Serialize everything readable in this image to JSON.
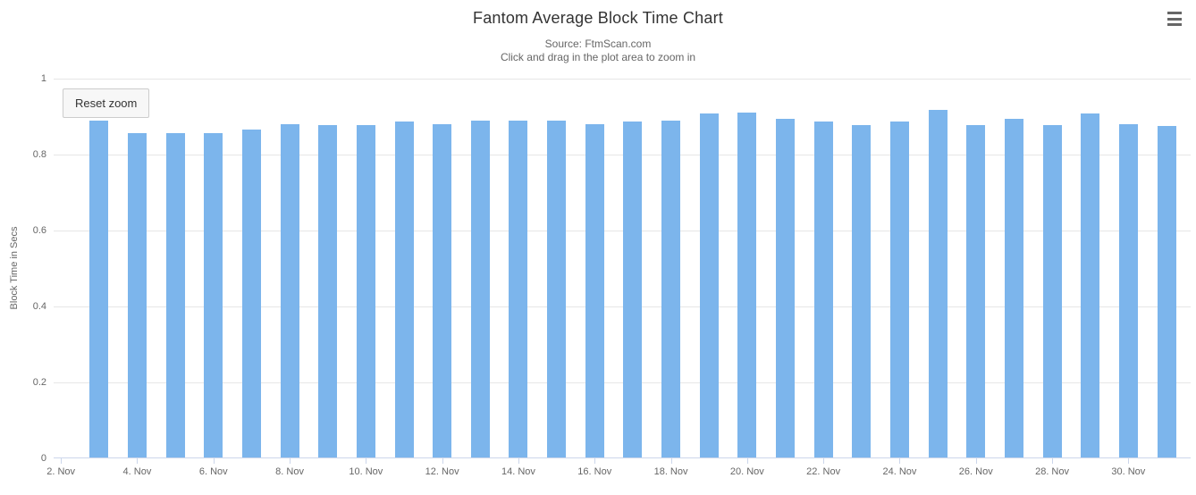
{
  "toolbar": {
    "reset_zoom_label": "Reset zoom",
    "menu_icon": "hamburger-menu-icon"
  },
  "colors": {
    "title": "#333333",
    "subtitle": "#666666",
    "axis_label": "#666666",
    "grid": "#e6e6e6",
    "axis_line": "#ccd6eb",
    "bar": "#7cb5ec",
    "button_bg": "#f7f7f7",
    "button_border": "#cccccc",
    "menu_icon": "#666666"
  },
  "chart_data": {
    "type": "bar",
    "title": "Fantom Average Block Time Chart",
    "subtitle": "Source: FtmScan.com",
    "zoom_hint": "Click and drag in the plot area to zoom in",
    "xlabel": "",
    "ylabel": "Block Time in Secs",
    "ylim": [
      0,
      1
    ],
    "grid": true,
    "legend": false,
    "categories": [
      "3. Nov",
      "4. Nov",
      "5. Nov",
      "6. Nov",
      "7. Nov",
      "8. Nov",
      "9. Nov",
      "10. Nov",
      "11. Nov",
      "12. Nov",
      "13. Nov",
      "14. Nov",
      "15. Nov",
      "16. Nov",
      "17. Nov",
      "18. Nov",
      "19. Nov",
      "20. Nov",
      "21. Nov",
      "22. Nov",
      "23. Nov",
      "24. Nov",
      "25. Nov",
      "26. Nov",
      "27. Nov",
      "28. Nov",
      "29. Nov",
      "30. Nov",
      "1. Dec"
    ],
    "values": [
      0.889,
      0.857,
      0.857,
      0.856,
      0.867,
      0.879,
      0.878,
      0.878,
      0.888,
      0.879,
      0.889,
      0.889,
      0.889,
      0.879,
      0.888,
      0.889,
      0.909,
      0.91,
      0.895,
      0.888,
      0.877,
      0.888,
      0.918,
      0.877,
      0.895,
      0.877,
      0.908,
      0.879,
      0.875
    ],
    "y_ticks": [
      {
        "value": 0,
        "label": "0"
      },
      {
        "value": 0.2,
        "label": "0.2"
      },
      {
        "value": 0.4,
        "label": "0.4"
      },
      {
        "value": 0.6,
        "label": "0.6"
      },
      {
        "value": 0.8,
        "label": "0.8"
      },
      {
        "value": 1,
        "label": "1"
      }
    ],
    "x_ticks": [
      {
        "label": "2. Nov",
        "pos": -1
      },
      {
        "label": "4. Nov",
        "pos": 1
      },
      {
        "label": "6. Nov",
        "pos": 3
      },
      {
        "label": "8. Nov",
        "pos": 5
      },
      {
        "label": "10. Nov",
        "pos": 7
      },
      {
        "label": "12. Nov",
        "pos": 9
      },
      {
        "label": "14. Nov",
        "pos": 11
      },
      {
        "label": "16. Nov",
        "pos": 13
      },
      {
        "label": "18. Nov",
        "pos": 15
      },
      {
        "label": "20. Nov",
        "pos": 17
      },
      {
        "label": "22. Nov",
        "pos": 19
      },
      {
        "label": "24. Nov",
        "pos": 21
      },
      {
        "label": "26. Nov",
        "pos": 23
      },
      {
        "label": "28. Nov",
        "pos": 25
      },
      {
        "label": "30. Nov",
        "pos": 27
      }
    ]
  }
}
